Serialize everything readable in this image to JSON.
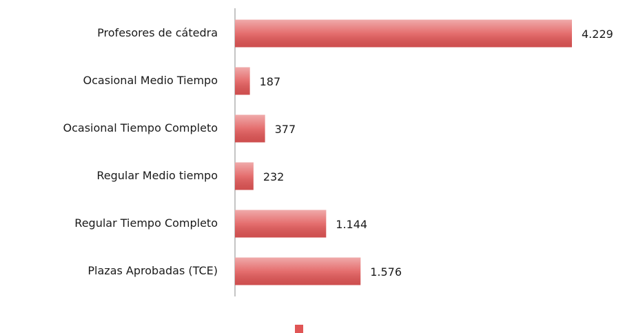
{
  "chart_data": {
    "type": "bar",
    "orientation": "horizontal",
    "categories": [
      "Profesores de cátedra",
      "Ocasional Medio Tiempo",
      "Ocasional Tiempo Completo",
      "Regular Medio tiempo",
      "Regular Tiempo Completo",
      "Plazas Aprobadas (TCE)"
    ],
    "values": [
      4229,
      187,
      377,
      232,
      1144,
      1576
    ],
    "value_labels": [
      "4.229",
      "187",
      "377",
      "232",
      "1.144",
      "1.576"
    ],
    "color": "#e05555"
  }
}
